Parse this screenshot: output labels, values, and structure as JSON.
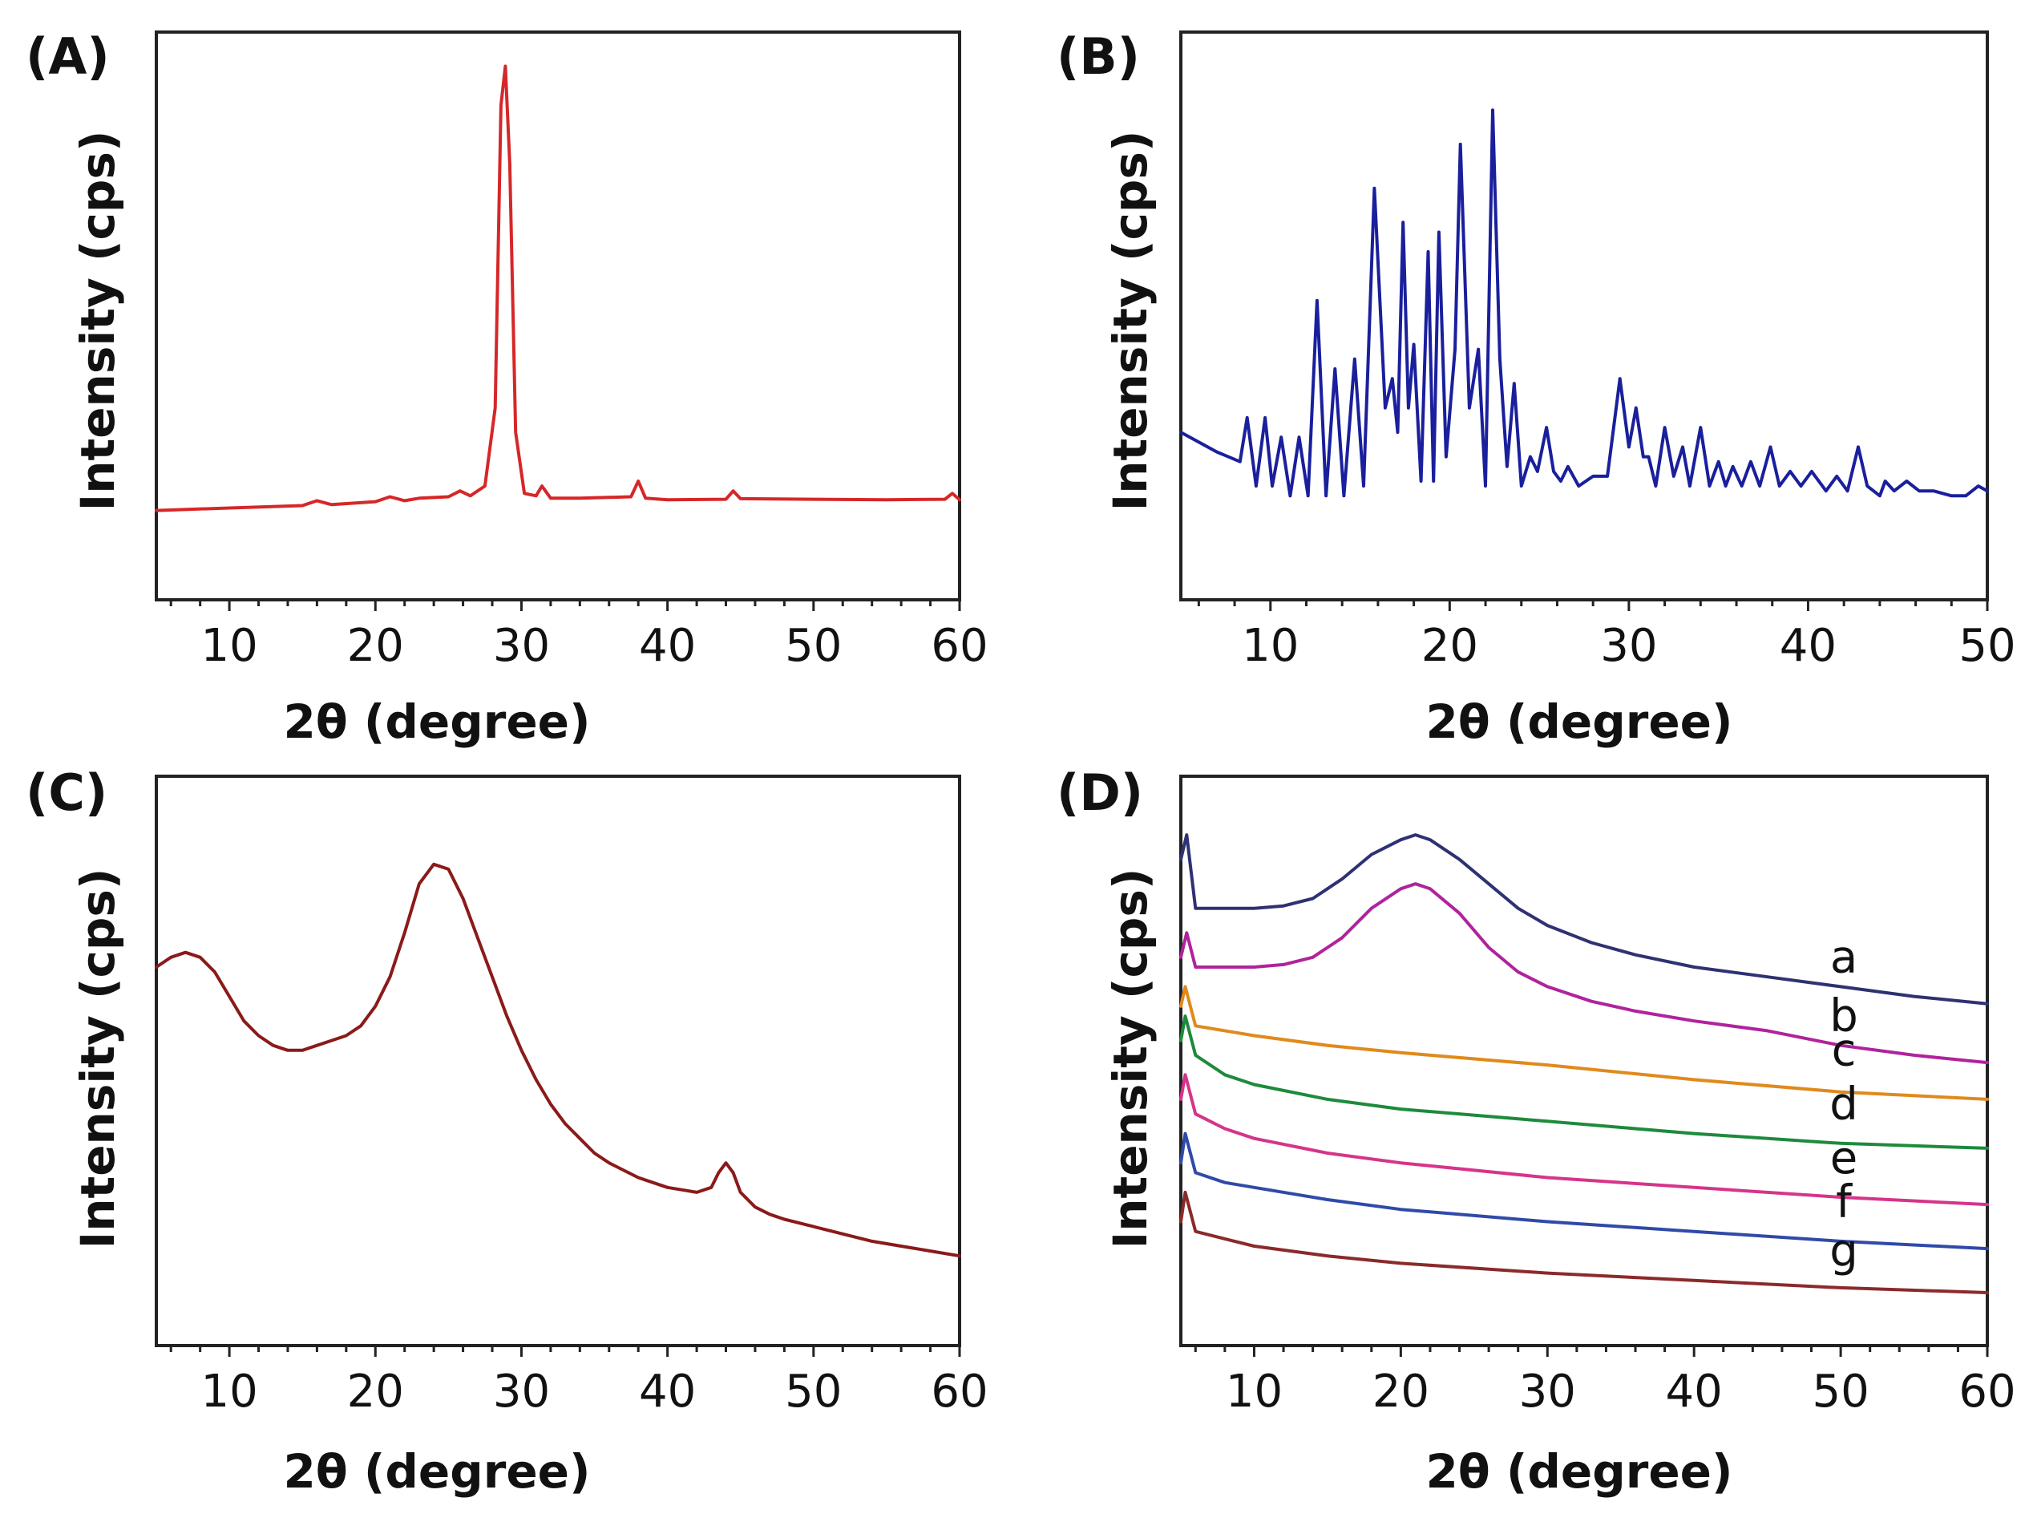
{
  "chart_data": [
    {
      "id": "A",
      "panel_label": "(A)",
      "type": "line",
      "xlabel": "2θ (degree)",
      "ylabel": "Intensity (cps)",
      "xlim": [
        5,
        60
      ],
      "ylim": [
        0,
        100
      ],
      "xticks": [
        10,
        20,
        30,
        40,
        50,
        60
      ],
      "minor_step": 2,
      "series": [
        {
          "name": "A",
          "color": "#d62728",
          "x": [
            5,
            10,
            15,
            16,
            17,
            20,
            21,
            22,
            23,
            25,
            25.8,
            26.5,
            27.5,
            28.2,
            28.6,
            28.9,
            29.2,
            29.6,
            30.2,
            31,
            31.4,
            32,
            34,
            37.5,
            38,
            38.5,
            40,
            44,
            44.5,
            45,
            50,
            55,
            59,
            59.5,
            60
          ],
          "values": [
            9,
            9.5,
            10,
            11,
            10.2,
            10.8,
            11.8,
            11,
            11.5,
            11.8,
            13,
            12,
            14,
            30,
            92,
            100,
            80,
            25,
            12.5,
            12,
            14,
            11.5,
            11.5,
            11.8,
            15,
            11.5,
            11.2,
            11.3,
            13,
            11.4,
            11.3,
            11.2,
            11.3,
            12.5,
            11.2
          ]
        }
      ]
    },
    {
      "id": "B",
      "panel_label": "(B)",
      "type": "line",
      "xlabel": "2θ (degree)",
      "ylabel": "Intensity (cps)",
      "xlim": [
        5,
        50
      ],
      "ylim": [
        0,
        100
      ],
      "xticks": [
        10,
        20,
        30,
        40,
        50
      ],
      "minor_step": 2,
      "series": [
        {
          "name": "B",
          "color": "#1a1f9c",
          "x": [
            5,
            7,
            8.3,
            8.7,
            9.2,
            9.7,
            10.1,
            10.6,
            11.1,
            11.6,
            12.1,
            12.6,
            13.1,
            13.6,
            14.1,
            14.7,
            15.2,
            15.8,
            16.4,
            16.8,
            17.1,
            17.4,
            17.7,
            18,
            18.4,
            18.8,
            19.1,
            19.4,
            19.8,
            20.3,
            20.6,
            21.1,
            21.6,
            22,
            22.4,
            22.8,
            23.2,
            23.6,
            24,
            24.5,
            24.9,
            25.4,
            25.8,
            26.2,
            26.6,
            27.2,
            28,
            28.8,
            29.5,
            30,
            30.4,
            30.8,
            31.1,
            31.5,
            32,
            32.5,
            33,
            33.4,
            34,
            34.5,
            35,
            35.4,
            35.8,
            36.3,
            36.8,
            37.3,
            37.9,
            38.4,
            39,
            39.6,
            40.2,
            41,
            41.6,
            42.2,
            42.8,
            43.3,
            44,
            44.3,
            44.8,
            45.5,
            46.2,
            47,
            48,
            48.8,
            49.5,
            50
          ],
          "values": [
            25,
            21,
            19,
            28,
            14,
            28,
            14,
            24,
            12,
            24,
            12,
            52,
            12,
            38,
            12,
            40,
            14,
            75,
            30,
            36,
            25,
            68,
            30,
            43,
            15,
            62,
            15,
            66,
            20,
            42,
            84,
            30,
            42,
            14,
            91,
            40,
            18,
            35,
            14,
            20,
            17,
            26,
            17,
            15,
            18,
            14,
            16,
            16,
            36,
            22,
            30,
            20,
            20,
            14,
            26,
            16,
            22,
            14,
            26,
            14,
            19,
            14,
            18,
            14,
            19,
            14,
            22,
            14,
            17,
            14,
            17,
            13,
            16,
            13,
            22,
            14,
            12,
            15,
            13,
            15,
            13,
            13,
            12,
            12,
            14,
            13
          ]
        }
      ]
    },
    {
      "id": "C",
      "panel_label": "(C)",
      "type": "line",
      "xlabel": "2θ (degree)",
      "ylabel": "Intensity (cps)",
      "xlim": [
        5,
        60
      ],
      "ylim": [
        0,
        100
      ],
      "xticks": [
        10,
        20,
        30,
        40,
        50,
        60
      ],
      "minor_step": 2,
      "series": [
        {
          "name": "C",
          "color": "#8b1a1a",
          "x": [
            5,
            6,
            7,
            8,
            9,
            10,
            11,
            12,
            13,
            14,
            15,
            16,
            17,
            18,
            19,
            20,
            21,
            22,
            23,
            24,
            25,
            26,
            27,
            28,
            29,
            30,
            31,
            32,
            33,
            34,
            35,
            36,
            37,
            38,
            39,
            40,
            41,
            42,
            43,
            43.5,
            44,
            44.5,
            45,
            46,
            47,
            48,
            50,
            52,
            54,
            56,
            58,
            60
          ],
          "values": [
            68,
            70,
            71,
            70,
            67,
            62,
            57,
            54,
            52,
            51,
            51,
            52,
            53,
            54,
            56,
            60,
            66,
            75,
            85,
            89,
            88,
            82,
            74,
            66,
            58,
            51,
            45,
            40,
            36,
            33,
            30,
            28,
            26.5,
            25,
            24,
            23,
            22.5,
            22,
            23,
            26,
            28,
            26,
            22,
            19,
            17.5,
            16.5,
            15,
            13.5,
            12,
            11,
            10,
            9
          ]
        }
      ]
    },
    {
      "id": "D",
      "panel_label": "(D)",
      "type": "line",
      "xlabel": "2θ (degree)",
      "ylabel": "Intensity (cps)",
      "xlim": [
        5,
        60
      ],
      "ylim": [
        0,
        100
      ],
      "xticks": [
        10,
        20,
        30,
        40,
        50,
        60
      ],
      "minor_step": 2,
      "series": [
        {
          "name": "a",
          "label": "a",
          "color": "#2e3272",
          "x": [
            5,
            5.4,
            6,
            8,
            10,
            12,
            14,
            16,
            18,
            20,
            21,
            22,
            24,
            26,
            28,
            30,
            33,
            36,
            40,
            45,
            50,
            55,
            60
          ],
          "values": [
            90,
            95,
            80,
            80,
            80,
            80.5,
            82,
            86,
            91,
            94,
            95,
            94,
            90,
            85,
            80,
            76.5,
            73,
            70.5,
            68,
            66,
            64,
            62,
            60.5
          ]
        },
        {
          "name": "b",
          "label": "b",
          "color": "#b0239c",
          "x": [
            5,
            5.4,
            6,
            8,
            10,
            12,
            14,
            16,
            18,
            20,
            21,
            22,
            24,
            26,
            28,
            30,
            33,
            36,
            40,
            45,
            50,
            55,
            60
          ],
          "values": [
            70,
            75,
            68,
            68,
            68,
            68.5,
            70,
            74,
            80,
            84,
            85,
            84,
            79,
            72,
            67,
            64,
            61,
            59,
            57,
            55,
            52,
            50,
            48.5
          ]
        },
        {
          "name": "c",
          "label": "c",
          "color": "#e08a1c",
          "x": [
            5,
            5.3,
            6,
            10,
            15,
            20,
            30,
            40,
            50,
            60
          ],
          "values": [
            60,
            64,
            56,
            54,
            52,
            50.5,
            48,
            45,
            42.5,
            41
          ]
        },
        {
          "name": "d",
          "label": "d",
          "color": "#1e8a3c",
          "x": [
            5,
            5.3,
            6,
            8,
            10,
            15,
            20,
            30,
            40,
            50,
            60
          ],
          "values": [
            53,
            58,
            50,
            46,
            44,
            41,
            39,
            36.5,
            34,
            32,
            31
          ]
        },
        {
          "name": "e",
          "label": "e",
          "color": "#d6348a",
          "x": [
            5,
            5.3,
            6,
            8,
            10,
            15,
            20,
            30,
            40,
            50,
            60
          ],
          "values": [
            41,
            46,
            38,
            35,
            33,
            30,
            28,
            25,
            23,
            21,
            19.5
          ]
        },
        {
          "name": "f",
          "label": "f",
          "color": "#2f4aa8",
          "x": [
            5,
            5.3,
            6,
            8,
            10,
            15,
            20,
            30,
            40,
            50,
            60
          ],
          "values": [
            28,
            34,
            26,
            24,
            23,
            20.5,
            18.5,
            16,
            14,
            12,
            10.5
          ]
        },
        {
          "name": "g",
          "label": "g",
          "color": "#8b2a2a",
          "x": [
            5,
            5.3,
            6,
            8,
            10,
            15,
            20,
            30,
            40,
            50,
            60
          ],
          "values": [
            16,
            22,
            14,
            12.5,
            11,
            9,
            7.5,
            5.5,
            4,
            2.5,
            1.5
          ]
        }
      ]
    }
  ]
}
